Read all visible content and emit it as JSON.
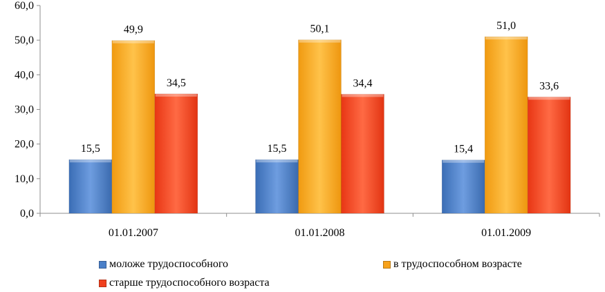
{
  "chart_data": {
    "type": "bar",
    "categories": [
      "01.01.2007",
      "01.01.2008",
      "01.01.2009"
    ],
    "series": [
      {
        "name": "моложе трудоспособного",
        "values": [
          15.5,
          15.5,
          15.4
        ],
        "color": "#4A7FC8"
      },
      {
        "name": "в трудоспособном возрасте",
        "values": [
          49.9,
          50.1,
          51.0
        ],
        "color": "#F7A21B"
      },
      {
        "name": "старше трудоспособного возраста",
        "values": [
          34.5,
          34.4,
          33.6
        ],
        "color": "#F0401E"
      }
    ],
    "data_labels": [
      [
        "15,5",
        "15,5",
        "15,4"
      ],
      [
        "49,9",
        "50,1",
        "51,0"
      ],
      [
        "34,5",
        "34,4",
        "33,6"
      ]
    ],
    "y_ticks": [
      "0,0",
      "10,0",
      "20,0",
      "30,0",
      "40,0",
      "50,0",
      "60,0"
    ],
    "ylim": [
      0,
      60
    ],
    "title": "",
    "xlabel": "",
    "ylabel": "",
    "grid": false,
    "legend_position": "bottom"
  }
}
